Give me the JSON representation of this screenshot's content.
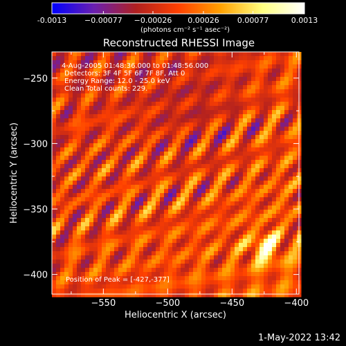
{
  "chart_data": {
    "type": "heatmap",
    "title": "Reconstructed RHESSI Image",
    "xlabel": "Heliocentric X (arcsec)",
    "ylabel": "Heliocentric Y (arcsec)",
    "xlim": [
      -590,
      -398
    ],
    "ylim": [
      -415,
      -230
    ],
    "x_ticks": [
      -550,
      -500,
      -450,
      -400
    ],
    "y_ticks": [
      -250,
      -300,
      -350,
      -400
    ],
    "colorbar": {
      "range": [
        -0.0013,
        0.0013
      ],
      "ticks": [
        "-0.0013",
        "−0.00077",
        "−0.00026",
        "0.00026",
        "0.00077",
        "0.0013"
      ],
      "tick_values": [
        -0.0013,
        -0.00077,
        -0.00026,
        0.00026,
        0.00077,
        0.0013
      ],
      "unit_label": "(photons cm⁻² s⁻¹ asec⁻²)",
      "colors": [
        "#0000ff",
        "#6a1fb0",
        "#b02020",
        "#ff4000",
        "#ffa000",
        "#ffff80",
        "#ffffff"
      ]
    },
    "annotations": [
      "4-Aug-2005 01:48:36.000 to 01:48:56.000",
      "Detectors: 3F 4F 5F 6F 7F 8F, Att 0",
      "Energy Range: 12.0 - 25.0 keV",
      "Clean     Total counts: 229."
    ],
    "peak_label": "Position of Peak = [-427,-377]",
    "peak": {
      "x": -427,
      "y": -377
    }
  },
  "footer": {
    "timestamp": "1-May-2022 13:42"
  }
}
